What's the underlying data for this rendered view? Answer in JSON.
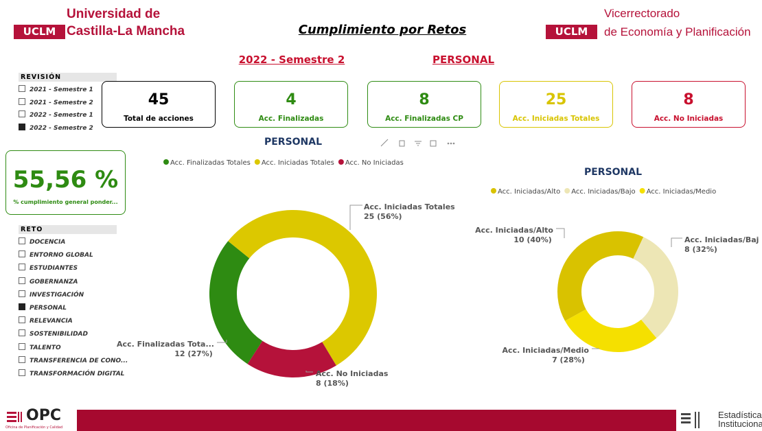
{
  "header": {
    "left_logo": {
      "brand": "UCLM",
      "line1": "Universidad de",
      "line2": "Castilla-La Mancha"
    },
    "title": "Cumplimiento por Retos",
    "right_logo": {
      "brand": "UCLM",
      "line1": "Vicerrectorado",
      "line2": "de Economía y Planificación"
    }
  },
  "period": "2022 - Semestre 2",
  "area": "PERSONAL",
  "revision": {
    "title": "REVISIÓN",
    "items": [
      {
        "label": "2021 - Semestre 1",
        "selected": false
      },
      {
        "label": "2021 - Semestre 2",
        "selected": false
      },
      {
        "label": "2022 - Semestre 1",
        "selected": false
      },
      {
        "label": "2022 - Semestre 2",
        "selected": true
      }
    ]
  },
  "kpis": [
    {
      "value": 45,
      "label": "Total de acciones",
      "color": "#000000"
    },
    {
      "value": 4,
      "label": "Acc. Finalizadas",
      "color": "#2e8b12"
    },
    {
      "value": 8,
      "label": "Acc. Finalizadas CP",
      "color": "#2e8b12"
    },
    {
      "value": 25,
      "label": "Acc. Iniciadas Totales",
      "color": "#d8c400"
    },
    {
      "value": 8,
      "label": "Acc. No Iniciadas",
      "color": "#c8102e"
    }
  ],
  "general": {
    "value": 55.56,
    "value_label": "55,56 %",
    "label": "% cumplimiento general ponder...",
    "color": "#2e8b12"
  },
  "reto": {
    "title": "RETO",
    "items": [
      {
        "label": "DOCENCIA",
        "selected": false
      },
      {
        "label": "ENTORNO GLOBAL",
        "selected": false
      },
      {
        "label": "ESTUDIANTES",
        "selected": false
      },
      {
        "label": "GOBERNANZA",
        "selected": false
      },
      {
        "label": "INVESTIGACIÓN",
        "selected": false
      },
      {
        "label": "PERSONAL",
        "selected": true
      },
      {
        "label": "RELEVANCIA",
        "selected": false
      },
      {
        "label": "SOSTENIBILIDAD",
        "selected": false
      },
      {
        "label": "TALENTO",
        "selected": false
      },
      {
        "label": "TRANSFERENCIA DE CONO...",
        "selected": false
      },
      {
        "label": "TRANSFORMACIÓN DIGITAL",
        "selected": false
      }
    ]
  },
  "charts": [
    {
      "type": "pie",
      "donut": true,
      "title": "PERSONAL",
      "categories": [
        "Acc. Finalizadas Totales",
        "Acc. Iniciadas Totales",
        "Acc. No Iniciadas"
      ],
      "label_names": [
        "Acc. Finalizadas Tota...",
        "Acc. Iniciadas Totales",
        "Acc. No Iniciadas"
      ],
      "values": [
        12,
        25,
        8
      ],
      "value_labels": [
        "12 (27%)",
        "25 (56%)",
        "8 (18%)"
      ],
      "colors": [
        "#2e8b12",
        "#dcc800",
        "#b5123a"
      ]
    },
    {
      "type": "pie",
      "donut": true,
      "title": "PERSONAL",
      "categories": [
        "Acc. Iniciadas/Alto",
        "Acc. Iniciadas/Bajo",
        "Acc. Iniciadas/Medio"
      ],
      "label_names": [
        "Acc. Iniciadas/Alto",
        "Acc. Iniciadas/Baj",
        "Acc. Iniciadas/Medio"
      ],
      "values": [
        10,
        8,
        7
      ],
      "value_labels": [
        "10 (40%)",
        "8 (32%)",
        "7 (28%)"
      ],
      "colors": [
        "#d9c200",
        "#ede6b5",
        "#f5e000"
      ]
    }
  ],
  "footer": {
    "left_logo": "OPC",
    "left_subtitle": "Oficina de Planificación y Calidad",
    "right_line1": "Estadística",
    "right_line2": "Institucional"
  }
}
